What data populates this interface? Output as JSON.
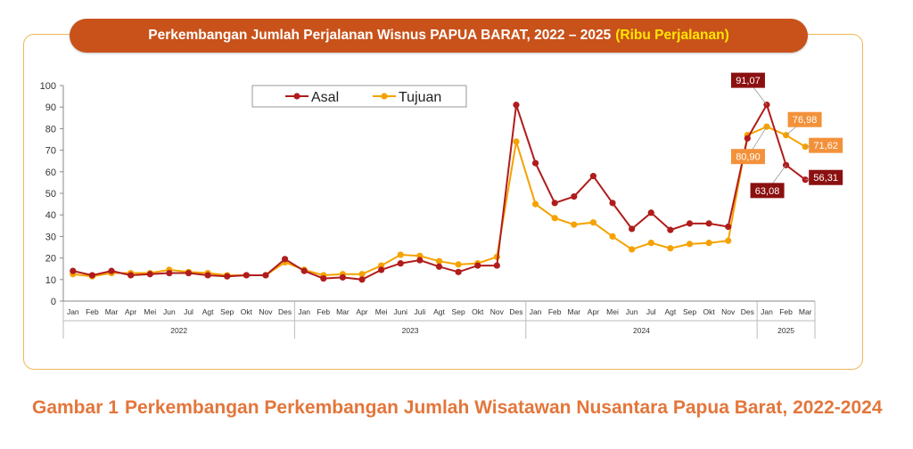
{
  "title": {
    "main": "Perkembangan Jumlah Perjalanan Wisnus PAPUA BARAT, 2022 – 2025",
    "unit": "(Ribu Perjalanan)"
  },
  "caption": {
    "number": "Gambar 1",
    "text": "Perkembangan Perkembangan Jumlah Wisatawan Nusantara Papua Barat, 2022-2024"
  },
  "colors": {
    "asal": "#b01c1c",
    "tujuan": "#f5a200",
    "title_bg": "#c8521a",
    "frame": "#f0b75a"
  },
  "chart_data": {
    "type": "line",
    "ylim": [
      0,
      100
    ],
    "yticks": [
      0,
      10,
      20,
      30,
      40,
      50,
      60,
      70,
      80,
      90,
      100
    ],
    "legend": "top-center",
    "grid": false,
    "categories": [
      "Jan",
      "Feb",
      "Mar",
      "Apr",
      "Mei",
      "Jun",
      "Jul",
      "Agt",
      "Sep",
      "Okt",
      "Nov",
      "Des",
      "Jan",
      "Feb",
      "Mar",
      "Apr",
      "Mei",
      "Juni",
      "Juli",
      "Agt",
      "Sep",
      "Okt",
      "Nov",
      "Des",
      "Jan",
      "Feb",
      "Mar",
      "Apr",
      "Mei",
      "Jun",
      "Jul",
      "Agt",
      "Sep",
      "Okt",
      "Nov",
      "Des",
      "Jan",
      "Feb",
      "Mar"
    ],
    "years": [
      {
        "label": "2022",
        "count": 12
      },
      {
        "label": "2023",
        "count": 12
      },
      {
        "label": "2024",
        "count": 12
      },
      {
        "label": "2025",
        "count": 3
      }
    ],
    "series": [
      {
        "name": "Asal",
        "values": [
          14,
          12,
          14,
          12,
          12.5,
          13,
          13,
          12,
          11.5,
          12,
          12,
          19.5,
          14,
          10.5,
          11,
          10,
          14.5,
          17.5,
          19,
          16,
          13.5,
          16.5,
          16.5,
          91,
          64,
          45.5,
          48.5,
          58,
          45.5,
          33.5,
          41,
          33,
          36,
          36,
          34.5,
          75.5,
          91.07,
          63.08,
          56.31
        ]
      },
      {
        "name": "Tujuan",
        "values": [
          12.5,
          11.5,
          13,
          13,
          13,
          14.5,
          13.5,
          13,
          12,
          12,
          12,
          18,
          14.5,
          12,
          12.5,
          12.5,
          16.5,
          21.5,
          21,
          18.5,
          17,
          17.5,
          20.5,
          74,
          45,
          38.5,
          35.5,
          36.5,
          30,
          24,
          27,
          24.5,
          26.5,
          27,
          28,
          77,
          80.9,
          76.98,
          71.62
        ]
      }
    ],
    "annotations": [
      {
        "series": "Asal",
        "index": 36,
        "label": "91,07"
      },
      {
        "series": "Asal",
        "index": 37,
        "label": "63,08"
      },
      {
        "series": "Asal",
        "index": 38,
        "label": "56,31"
      },
      {
        "series": "Tujuan",
        "index": 36,
        "label": "80,90"
      },
      {
        "series": "Tujuan",
        "index": 37,
        "label": "76,98"
      },
      {
        "series": "Tujuan",
        "index": 38,
        "label": "71,62"
      }
    ]
  }
}
